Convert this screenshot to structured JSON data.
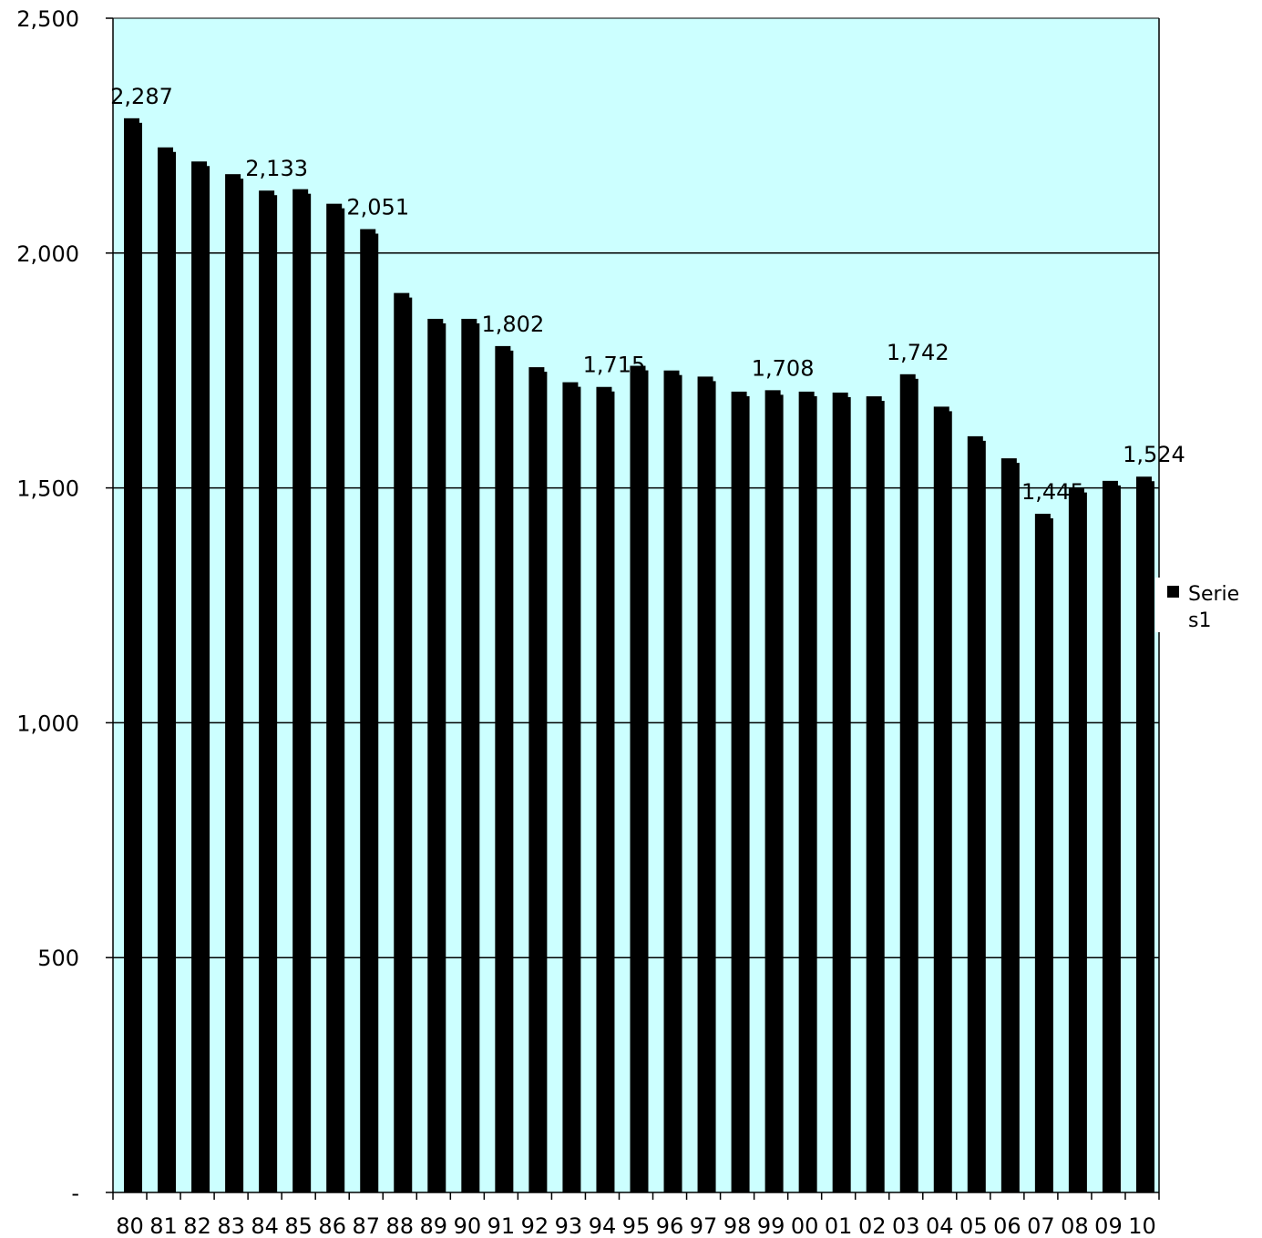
{
  "chart_data": {
    "type": "bar",
    "categories": [
      "80",
      "81",
      "82",
      "83",
      "84",
      "85",
      "86",
      "87",
      "88",
      "89",
      "90",
      "91",
      "92",
      "93",
      "94",
      "95",
      "96",
      "97",
      "98",
      "99",
      "00",
      "01",
      "02",
      "03",
      "04",
      "05",
      "06",
      "07",
      "08",
      "09",
      "10"
    ],
    "series": [
      {
        "name": "Series1",
        "values": [
          2287,
          2225,
          2195,
          2168,
          2133,
          2136,
          2105,
          2051,
          1915,
          1860,
          1860,
          1802,
          1757,
          1725,
          1715,
          1760,
          1750,
          1737,
          1705,
          1708,
          1705,
          1703,
          1695,
          1742,
          1673,
          1610,
          1563,
          1445,
          1500,
          1515,
          1524
        ]
      }
    ],
    "data_labels": [
      {
        "index": 0,
        "text": "2,287"
      },
      {
        "index": 4,
        "text": "2,133"
      },
      {
        "index": 7,
        "text": "2,051"
      },
      {
        "index": 11,
        "text": "1,802"
      },
      {
        "index": 14,
        "text": "1,715"
      },
      {
        "index": 19,
        "text": "1,708"
      },
      {
        "index": 23,
        "text": "1,742"
      },
      {
        "index": 27,
        "text": "1,445"
      },
      {
        "index": 30,
        "text": "1,524"
      }
    ],
    "y_ticks": [
      {
        "value": 0,
        "label": "-"
      },
      {
        "value": 500,
        "label": "500"
      },
      {
        "value": 1000,
        "label": "1,000"
      },
      {
        "value": 1500,
        "label": "1,500"
      },
      {
        "value": 2000,
        "label": "2,000"
      },
      {
        "value": 2500,
        "label": "2,500"
      }
    ],
    "ylim": [
      0,
      2500
    ],
    "title": "",
    "xlabel": "",
    "ylabel": "",
    "grid": true,
    "legend": {
      "position": "right",
      "lines": [
        "Serie",
        "s1"
      ]
    },
    "colors": {
      "plot_background": "#ccffff",
      "bar": "#000000",
      "gridline": "#000000"
    }
  }
}
